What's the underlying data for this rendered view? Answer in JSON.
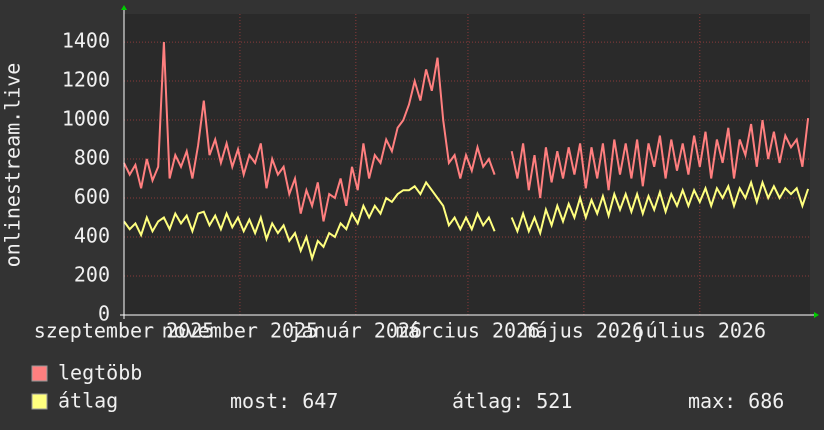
{
  "chart_data": {
    "type": "line",
    "y_label": "onlinestream.live",
    "x": [
      0,
      3,
      6,
      9,
      12,
      15,
      18,
      21,
      24,
      27,
      30,
      33,
      36,
      39,
      42,
      45,
      48,
      51,
      54,
      57,
      60,
      63,
      66,
      69,
      72,
      75,
      78,
      81,
      84,
      87,
      90,
      93,
      96,
      99,
      102,
      105,
      108,
      111,
      114,
      117,
      120,
      123,
      126,
      129,
      132,
      135,
      138,
      141,
      144,
      147,
      150,
      153,
      156,
      159,
      162,
      165,
      168,
      171,
      174,
      177,
      180,
      183,
      186,
      189,
      192,
      195,
      198,
      201,
      204,
      207,
      210,
      213,
      216,
      219,
      222,
      225,
      228,
      231,
      234,
      237,
      240,
      243,
      246,
      249,
      252,
      255,
      258,
      261,
      264,
      267,
      270,
      273,
      276,
      279,
      282,
      285,
      288,
      291,
      294,
      297,
      300,
      303,
      306,
      309,
      312,
      315,
      318,
      321,
      324,
      327,
      330,
      333,
      336,
      339,
      342,
      345,
      348,
      351,
      354,
      357,
      360
    ],
    "xlim": [
      0,
      361
    ],
    "xticks": [
      {
        "value": 0,
        "label": "szeptember 2025"
      },
      {
        "value": 61,
        "label": "november 2025"
      },
      {
        "value": 122,
        "label": "január 2026"
      },
      {
        "value": 181,
        "label": "március 2026"
      },
      {
        "value": 242,
        "label": "május 2026"
      },
      {
        "value": 303,
        "label": "július 2026"
      }
    ],
    "ylim": [
      0,
      1544
    ],
    "yticks": [
      0,
      200,
      400,
      600,
      800,
      1000,
      1200,
      1400
    ],
    "grid": true,
    "series": [
      {
        "name": "legtöbb",
        "color": "#ff7f7f",
        "values": [
          780,
          720,
          770,
          650,
          800,
          690,
          760,
          1400,
          700,
          820,
          760,
          840,
          700,
          870,
          1100,
          820,
          900,
          780,
          880,
          760,
          850,
          720,
          820,
          780,
          880,
          650,
          800,
          720,
          760,
          620,
          700,
          520,
          640,
          560,
          680,
          480,
          620,
          600,
          700,
          560,
          760,
          640,
          880,
          700,
          820,
          780,
          900,
          840,
          960,
          1000,
          1080,
          1200,
          1100,
          1260,
          1150,
          1320,
          1000,
          780,
          820,
          700,
          820,
          740,
          860,
          760,
          800,
          720,
          null,
          null,
          840,
          700,
          880,
          640,
          820,
          600,
          860,
          680,
          840,
          700,
          860,
          720,
          880,
          650,
          860,
          700,
          880,
          640,
          900,
          720,
          880,
          700,
          900,
          660,
          880,
          760,
          920,
          700,
          900,
          740,
          880,
          720,
          920,
          760,
          940,
          700,
          900,
          780,
          960,
          700,
          900,
          820,
          980,
          760,
          1000,
          800,
          940,
          780,
          920,
          860,
          900,
          760,
          1010
        ]
      },
      {
        "name": "átlag",
        "color": "#ffff7f",
        "values": [
          480,
          440,
          470,
          410,
          500,
          430,
          480,
          500,
          440,
          520,
          470,
          510,
          430,
          520,
          530,
          460,
          510,
          440,
          520,
          450,
          500,
          430,
          490,
          420,
          500,
          390,
          470,
          420,
          460,
          380,
          420,
          330,
          400,
          290,
          380,
          350,
          420,
          400,
          470,
          440,
          520,
          470,
          560,
          500,
          560,
          520,
          600,
          580,
          620,
          640,
          640,
          660,
          620,
          680,
          640,
          600,
          560,
          460,
          500,
          440,
          500,
          440,
          520,
          460,
          500,
          430,
          null,
          null,
          500,
          430,
          520,
          430,
          500,
          420,
          540,
          460,
          560,
          480,
          570,
          500,
          600,
          500,
          590,
          520,
          610,
          510,
          620,
          540,
          620,
          530,
          620,
          520,
          610,
          540,
          630,
          530,
          620,
          560,
          640,
          560,
          640,
          580,
          650,
          560,
          650,
          600,
          660,
          560,
          650,
          600,
          680,
          580,
          680,
          600,
          660,
          600,
          650,
          620,
          650,
          560,
          647
        ]
      }
    ],
    "stats": [
      {
        "label": "most:",
        "value": 647
      },
      {
        "label": "átlag:",
        "value": 521
      },
      {
        "label": "max:",
        "value": 686
      }
    ]
  }
}
